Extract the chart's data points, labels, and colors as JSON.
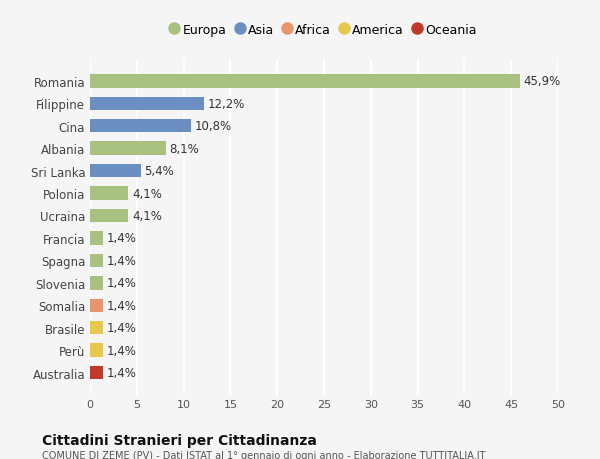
{
  "categories": [
    "Australia",
    "Perù",
    "Brasile",
    "Somalia",
    "Slovenia",
    "Spagna",
    "Francia",
    "Ucraina",
    "Polonia",
    "Sri Lanka",
    "Albania",
    "Cina",
    "Filippine",
    "Romania"
  ],
  "values": [
    1.4,
    1.4,
    1.4,
    1.4,
    1.4,
    1.4,
    1.4,
    4.1,
    4.1,
    5.4,
    8.1,
    10.8,
    12.2,
    45.9
  ],
  "labels": [
    "1,4%",
    "1,4%",
    "1,4%",
    "1,4%",
    "1,4%",
    "1,4%",
    "1,4%",
    "4,1%",
    "4,1%",
    "5,4%",
    "8,1%",
    "10,8%",
    "12,2%",
    "45,9%"
  ],
  "colors": [
    "#c0392b",
    "#e8c84a",
    "#e8c84a",
    "#e8956d",
    "#a8c080",
    "#a8c080",
    "#a8c080",
    "#a8c080",
    "#a8c080",
    "#6b8fc0",
    "#a8c080",
    "#6b8fc0",
    "#6b8fc0",
    "#a8c080"
  ],
  "legend_labels": [
    "Europa",
    "Asia",
    "Africa",
    "America",
    "Oceania"
  ],
  "legend_colors": [
    "#a8c080",
    "#6b8fc0",
    "#e8956d",
    "#e8c84a",
    "#c0392b"
  ],
  "title": "Cittadini Stranieri per Cittadinanza",
  "subtitle": "COMUNE DI ZEME (PV) - Dati ISTAT al 1° gennaio di ogni anno - Elaborazione TUTTITALIA.IT",
  "xlim": [
    0,
    50
  ],
  "xticks": [
    0,
    5,
    10,
    15,
    20,
    25,
    30,
    35,
    40,
    45,
    50
  ],
  "bg_color": "#f5f5f5",
  "bar_height": 0.6,
  "grid_color": "#ffffff",
  "label_fontsize": 8.5,
  "tick_fontsize": 8,
  "ytick_fontsize": 8.5
}
